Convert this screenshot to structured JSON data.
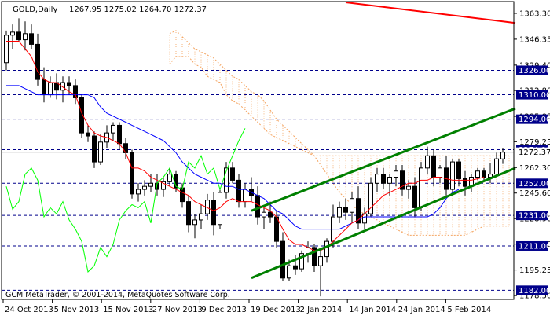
{
  "header": {
    "symbol_timeframe": "GOLD,Daily",
    "ohlc": "1267.95 1275.02 1264.70 1272.37"
  },
  "copyright": "GCM MetaTrader, © 2001-2014, MetaQuotes Software Corp.",
  "colors": {
    "background": "#ffffff",
    "frame": "#000000",
    "candle": "#000000",
    "tenkan": "#ff0000",
    "kijun": "#0000ff",
    "chikou": "#00ff00",
    "cloud": "#f4a460",
    "channel": "#008000",
    "resistance_line": "#ff0000",
    "level_line": "#00008b",
    "level_label_bg": "#00008b"
  },
  "chart_data": {
    "type": "candlestick",
    "indicators": [
      "Ichimoku (tenkan, kijun, chikou span, cloud)"
    ],
    "y_axis": {
      "range": [
        1176,
        1371
      ],
      "ticks": [
        1363.3,
        1346.35,
        1329.4,
        1312.8,
        1295.85,
        1279.25,
        1262.3,
        1245.6,
        1228.9,
        1212.2,
        1195.25,
        1178.5
      ]
    },
    "x_axis": {
      "tick_labels": [
        "24 Oct 2013",
        "5 Nov 2013",
        "15 Nov 2013",
        "27 Nov 2013",
        "9 Dec 2013",
        "19 Dec 2013",
        "2 Jan 2014",
        "14 Jan 2014",
        "24 Jan 2014",
        "5 Feb 2014"
      ]
    },
    "horizontal_levels": [
      1326.0,
      1310.0,
      1294.0,
      1274.0,
      1252.0,
      1231.0,
      1211.0,
      1182.0
    ],
    "current_price": 1272.37,
    "candles": [
      {
        "o": 1331,
        "h": 1352,
        "l": 1326,
        "c": 1349
      },
      {
        "o": 1349,
        "h": 1356,
        "l": 1340,
        "c": 1351
      },
      {
        "o": 1351,
        "h": 1360,
        "l": 1345,
        "c": 1346
      },
      {
        "o": 1346,
        "h": 1358,
        "l": 1339,
        "c": 1350
      },
      {
        "o": 1350,
        "h": 1356,
        "l": 1340,
        "c": 1343
      },
      {
        "o": 1343,
        "h": 1350,
        "l": 1316,
        "c": 1320
      },
      {
        "o": 1320,
        "h": 1328,
        "l": 1305,
        "c": 1310
      },
      {
        "o": 1310,
        "h": 1322,
        "l": 1308,
        "c": 1318
      },
      {
        "o": 1318,
        "h": 1324,
        "l": 1307,
        "c": 1313
      },
      {
        "o": 1313,
        "h": 1322,
        "l": 1305,
        "c": 1318
      },
      {
        "o": 1318,
        "h": 1322,
        "l": 1310,
        "c": 1316
      },
      {
        "o": 1316,
        "h": 1320,
        "l": 1304,
        "c": 1308
      },
      {
        "o": 1308,
        "h": 1310,
        "l": 1282,
        "c": 1285
      },
      {
        "o": 1285,
        "h": 1290,
        "l": 1279,
        "c": 1283
      },
      {
        "o": 1283,
        "h": 1286,
        "l": 1262,
        "c": 1266
      },
      {
        "o": 1266,
        "h": 1284,
        "l": 1264,
        "c": 1279
      },
      {
        "o": 1279,
        "h": 1290,
        "l": 1275,
        "c": 1285
      },
      {
        "o": 1285,
        "h": 1292,
        "l": 1280,
        "c": 1290
      },
      {
        "o": 1290,
        "h": 1292,
        "l": 1274,
        "c": 1278
      },
      {
        "o": 1278,
        "h": 1282,
        "l": 1268,
        "c": 1272
      },
      {
        "o": 1272,
        "h": 1274,
        "l": 1242,
        "c": 1245
      },
      {
        "o": 1245,
        "h": 1252,
        "l": 1240,
        "c": 1248
      },
      {
        "o": 1248,
        "h": 1254,
        "l": 1244,
        "c": 1250
      },
      {
        "o": 1250,
        "h": 1258,
        "l": 1246,
        "c": 1252
      },
      {
        "o": 1252,
        "h": 1258,
        "l": 1244,
        "c": 1248
      },
      {
        "o": 1248,
        "h": 1256,
        "l": 1243,
        "c": 1253
      },
      {
        "o": 1253,
        "h": 1262,
        "l": 1250,
        "c": 1258
      },
      {
        "o": 1258,
        "h": 1260,
        "l": 1246,
        "c": 1249
      },
      {
        "o": 1249,
        "h": 1252,
        "l": 1236,
        "c": 1240
      },
      {
        "o": 1240,
        "h": 1244,
        "l": 1220,
        "c": 1225
      },
      {
        "o": 1225,
        "h": 1232,
        "l": 1216,
        "c": 1228
      },
      {
        "o": 1228,
        "h": 1238,
        "l": 1222,
        "c": 1232
      },
      {
        "o": 1232,
        "h": 1245,
        "l": 1228,
        "c": 1241
      },
      {
        "o": 1241,
        "h": 1246,
        "l": 1218,
        "c": 1225
      },
      {
        "o": 1225,
        "h": 1248,
        "l": 1222,
        "c": 1246
      },
      {
        "o": 1246,
        "h": 1266,
        "l": 1242,
        "c": 1262
      },
      {
        "o": 1262,
        "h": 1266,
        "l": 1252,
        "c": 1254
      },
      {
        "o": 1254,
        "h": 1258,
        "l": 1236,
        "c": 1240
      },
      {
        "o": 1240,
        "h": 1252,
        "l": 1236,
        "c": 1248
      },
      {
        "o": 1248,
        "h": 1256,
        "l": 1240,
        "c": 1244
      },
      {
        "o": 1244,
        "h": 1250,
        "l": 1225,
        "c": 1230
      },
      {
        "o": 1230,
        "h": 1236,
        "l": 1222,
        "c": 1233
      },
      {
        "o": 1233,
        "h": 1240,
        "l": 1226,
        "c": 1230
      },
      {
        "o": 1230,
        "h": 1234,
        "l": 1210,
        "c": 1214
      },
      {
        "o": 1214,
        "h": 1220,
        "l": 1188,
        "c": 1190
      },
      {
        "o": 1190,
        "h": 1202,
        "l": 1188,
        "c": 1198
      },
      {
        "o": 1198,
        "h": 1205,
        "l": 1192,
        "c": 1196
      },
      {
        "o": 1196,
        "h": 1208,
        "l": 1194,
        "c": 1206
      },
      {
        "o": 1206,
        "h": 1214,
        "l": 1200,
        "c": 1210
      },
      {
        "o": 1210,
        "h": 1212,
        "l": 1194,
        "c": 1198
      },
      {
        "o": 1198,
        "h": 1208,
        "l": 1178,
        "c": 1204
      },
      {
        "o": 1204,
        "h": 1216,
        "l": 1200,
        "c": 1214
      },
      {
        "o": 1214,
        "h": 1238,
        "l": 1210,
        "c": 1230
      },
      {
        "o": 1230,
        "h": 1240,
        "l": 1226,
        "c": 1236
      },
      {
        "o": 1236,
        "h": 1242,
        "l": 1228,
        "c": 1233
      },
      {
        "o": 1233,
        "h": 1246,
        "l": 1226,
        "c": 1242
      },
      {
        "o": 1242,
        "h": 1250,
        "l": 1222,
        "c": 1226
      },
      {
        "o": 1226,
        "h": 1236,
        "l": 1222,
        "c": 1232
      },
      {
        "o": 1232,
        "h": 1256,
        "l": 1230,
        "c": 1252
      },
      {
        "o": 1252,
        "h": 1262,
        "l": 1246,
        "c": 1258
      },
      {
        "o": 1258,
        "h": 1262,
        "l": 1248,
        "c": 1252
      },
      {
        "o": 1252,
        "h": 1258,
        "l": 1244,
        "c": 1256
      },
      {
        "o": 1256,
        "h": 1264,
        "l": 1250,
        "c": 1260
      },
      {
        "o": 1260,
        "h": 1264,
        "l": 1244,
        "c": 1248
      },
      {
        "o": 1248,
        "h": 1254,
        "l": 1242,
        "c": 1250
      },
      {
        "o": 1250,
        "h": 1256,
        "l": 1230,
        "c": 1236
      },
      {
        "o": 1236,
        "h": 1266,
        "l": 1234,
        "c": 1262
      },
      {
        "o": 1262,
        "h": 1276,
        "l": 1258,
        "c": 1270
      },
      {
        "o": 1270,
        "h": 1274,
        "l": 1250,
        "c": 1256
      },
      {
        "o": 1256,
        "h": 1264,
        "l": 1252,
        "c": 1262
      },
      {
        "o": 1262,
        "h": 1270,
        "l": 1244,
        "c": 1248
      },
      {
        "o": 1248,
        "h": 1268,
        "l": 1246,
        "c": 1266
      },
      {
        "o": 1266,
        "h": 1268,
        "l": 1250,
        "c": 1255
      },
      {
        "o": 1255,
        "h": 1260,
        "l": 1244,
        "c": 1250
      },
      {
        "o": 1250,
        "h": 1258,
        "l": 1246,
        "c": 1256
      },
      {
        "o": 1256,
        "h": 1262,
        "l": 1254,
        "c": 1260
      },
      {
        "o": 1260,
        "h": 1262,
        "l": 1254,
        "c": 1256
      },
      {
        "o": 1256,
        "h": 1265,
        "l": 1252,
        "c": 1258
      },
      {
        "o": 1258,
        "h": 1272,
        "l": 1256,
        "c": 1268
      },
      {
        "o": 1267.95,
        "h": 1275.02,
        "l": 1264.7,
        "c": 1272.37
      }
    ],
    "tenkan": [
      1345,
      1345,
      1345,
      1340,
      1335,
      1325,
      1320,
      1318,
      1318,
      1315,
      1312,
      1310,
      1298,
      1290,
      1285,
      1283,
      1282,
      1280,
      1278,
      1272,
      1262,
      1262,
      1260,
      1256,
      1254,
      1252,
      1250,
      1248,
      1246,
      1244,
      1240,
      1238,
      1236,
      1234,
      1236,
      1240,
      1242,
      1240,
      1240,
      1240,
      1238,
      1236,
      1234,
      1230,
      1222,
      1215,
      1212,
      1212,
      1210,
      1208,
      1208,
      1210,
      1214,
      1218,
      1222,
      1226,
      1228,
      1232,
      1236,
      1240,
      1244,
      1246,
      1248,
      1250,
      1252,
      1252,
      1254,
      1254,
      1256,
      1256,
      1255,
      1254,
      1254,
      1254,
      1254,
      1255,
      1256
    ],
    "kijun": [
      1316,
      1316,
      1316,
      1314,
      1312,
      1310,
      1310,
      1310,
      1310,
      1310,
      1310,
      1310,
      1310,
      1310,
      1308,
      1302,
      1298,
      1296,
      1294,
      1292,
      1290,
      1288,
      1286,
      1284,
      1282,
      1280,
      1276,
      1272,
      1266,
      1262,
      1258,
      1256,
      1254,
      1252,
      1252,
      1250,
      1250,
      1248,
      1248,
      1246,
      1244,
      1242,
      1238,
      1234,
      1232,
      1228,
      1224,
      1222,
      1222,
      1222,
      1222,
      1222,
      1222,
      1222,
      1224,
      1226,
      1228,
      1230,
      1230,
      1230,
      1230,
      1230,
      1230,
      1230,
      1230,
      1230,
      1230,
      1230,
      1232,
      1236,
      1242,
      1246,
      1248
    ],
    "chikou": [
      1250,
      1235,
      1240,
      1258,
      1262,
      1254,
      1230,
      1236,
      1232,
      1240,
      1228,
      1222,
      1214,
      1194,
      1198,
      1210,
      1204,
      1212,
      1228,
      1234,
      1238,
      1236,
      1240,
      1226,
      1252,
      1256,
      1262,
      1250,
      1248,
      1266,
      1262,
      1270,
      1258,
      1262,
      1248,
      1260,
      1270,
      1280,
      1288
    ],
    "cloud_top": [
      1330,
      1335,
      1335,
      1335,
      1330,
      1328,
      1322,
      1320,
      1318,
      1310,
      1306,
      1304,
      1300,
      1296,
      1292,
      1288,
      1284,
      1282,
      1280,
      1278,
      1276,
      1274,
      1272,
      1270,
      1270,
      1270,
      1270,
      1270,
      1270,
      1270,
      1270,
      1270,
      1270,
      1270,
      1270,
      1270,
      1270,
      1270,
      1270,
      1270,
      1270,
      1270,
      1270,
      1270,
      1270,
      1270,
      1270,
      1270,
      1270,
      1270,
      1270,
      1270,
      1270,
      1270,
      1270,
      1270,
      1270,
      1270,
      1270,
      1270,
      1270,
      1270,
      1270,
      1272,
      1272
    ],
    "cloud_bottom": [
      1350,
      1352,
      1348,
      1344,
      1340,
      1338,
      1336,
      1334,
      1330,
      1326,
      1322,
      1320,
      1316,
      1312,
      1310,
      1306,
      1300,
      1294,
      1290,
      1286,
      1282,
      1278,
      1274,
      1270,
      1264,
      1258,
      1252,
      1246,
      1242,
      1238,
      1234,
      1232,
      1230,
      1228,
      1226,
      1224,
      1222,
      1220,
      1218,
      1218,
      1218,
      1218,
      1218,
      1218,
      1218,
      1218,
      1218,
      1218,
      1220,
      1222,
      1224,
      1224,
      1224,
      1224,
      1224,
      1226,
      1226,
      1228,
      1228,
      1228,
      1230,
      1232,
      1234,
      1236,
      1238
    ]
  }
}
